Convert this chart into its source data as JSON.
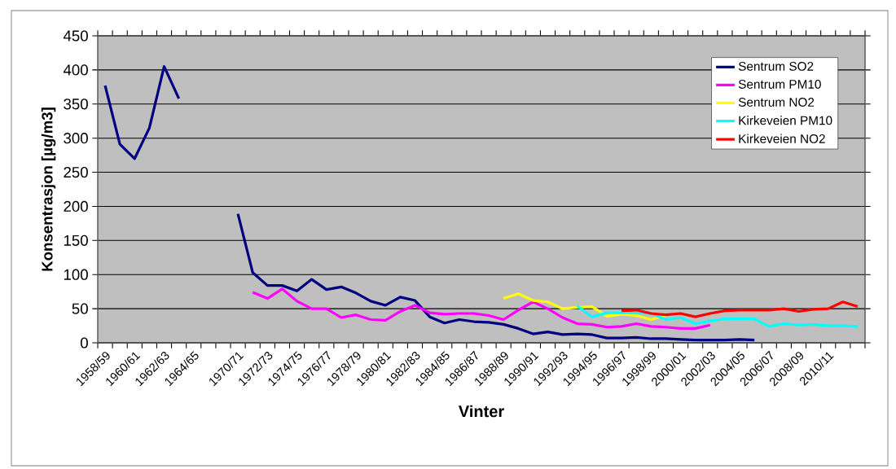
{
  "chart_data": {
    "type": "line",
    "xlabel": "Vinter",
    "ylabel": "Konsentrasjon [µg/m3]",
    "categories": [
      "1958/59",
      null,
      "1960/61",
      null,
      "1962/63",
      null,
      "1964/65",
      null,
      null,
      "1970/71",
      null,
      "1972/73",
      null,
      "1974/75",
      null,
      "1976/77",
      null,
      "1978/79",
      null,
      "1980/81",
      null,
      "1982/83",
      null,
      "1984/85",
      null,
      "1986/87",
      null,
      "1988/89",
      null,
      "1990/91",
      null,
      "1992/93",
      null,
      "1994/95",
      null,
      "1996/97",
      null,
      "1998/99",
      null,
      "2000/01",
      null,
      "2002/03",
      null,
      "2004/05",
      null,
      "2006/07",
      null,
      "2008/09",
      null,
      "2010/11",
      null,
      null
    ],
    "series": [
      {
        "name": "Sentrum SO2",
        "color": "#000080",
        "values": [
          377,
          291,
          270,
          315,
          405,
          358,
          null,
          null,
          null,
          189,
          103,
          84,
          84,
          76,
          93,
          78,
          82,
          73,
          61,
          55,
          67,
          62,
          38,
          29,
          34,
          31,
          30,
          27,
          21,
          13,
          16,
          12,
          13,
          12,
          7,
          7,
          8,
          6,
          6,
          5,
          4,
          4,
          4,
          5,
          4,
          null,
          null,
          null,
          null,
          null,
          null,
          null
        ]
      },
      {
        "name": "Sentrum PM10",
        "color": "#ff00ff",
        "values": [
          null,
          null,
          null,
          null,
          null,
          null,
          null,
          null,
          null,
          null,
          74,
          65,
          79,
          61,
          50,
          50,
          37,
          41,
          34,
          33,
          46,
          55,
          44,
          42,
          43,
          43,
          40,
          34,
          48,
          60,
          50,
          37,
          28,
          27,
          23,
          24,
          28,
          24,
          23,
          21,
          21,
          26,
          null,
          null,
          null,
          null,
          null,
          null,
          null,
          null,
          null,
          null
        ]
      },
      {
        "name": "Sentrum NO2",
        "color": "#ffff00",
        "values": [
          null,
          null,
          null,
          null,
          null,
          null,
          null,
          null,
          null,
          null,
          null,
          null,
          null,
          null,
          null,
          null,
          null,
          null,
          null,
          null,
          null,
          null,
          null,
          null,
          null,
          null,
          null,
          65,
          72,
          62,
          60,
          50,
          52,
          53,
          39,
          42,
          40,
          34,
          40,
          null,
          null,
          null,
          null,
          null,
          null,
          null,
          null,
          null,
          null,
          null,
          null,
          null
        ]
      },
      {
        "name": "Kirkeveien PM10",
        "color": "#00ffff",
        "values": [
          null,
          null,
          null,
          null,
          null,
          null,
          null,
          null,
          null,
          null,
          null,
          null,
          null,
          null,
          null,
          null,
          null,
          null,
          null,
          null,
          null,
          null,
          null,
          null,
          null,
          null,
          null,
          null,
          null,
          null,
          null,
          null,
          54,
          38,
          44,
          44,
          44,
          43,
          34,
          37,
          28,
          32,
          35,
          35,
          35,
          24,
          28,
          26,
          27,
          25,
          25,
          24
        ]
      },
      {
        "name": "Kirkeveien NO2",
        "color": "#ff0000",
        "values": [
          null,
          null,
          null,
          null,
          null,
          null,
          null,
          null,
          null,
          null,
          null,
          null,
          null,
          null,
          null,
          null,
          null,
          null,
          null,
          null,
          null,
          null,
          null,
          null,
          null,
          null,
          null,
          null,
          null,
          null,
          null,
          null,
          null,
          null,
          null,
          47,
          48,
          43,
          41,
          43,
          38,
          43,
          47,
          48,
          48,
          48,
          50,
          46,
          49,
          50,
          60,
          53
        ]
      }
    ],
    "ylim": [
      0,
      450
    ],
    "yticks": [
      0,
      50,
      100,
      150,
      200,
      250,
      300,
      350,
      400,
      450
    ],
    "grid": "y",
    "legend": "top right"
  }
}
